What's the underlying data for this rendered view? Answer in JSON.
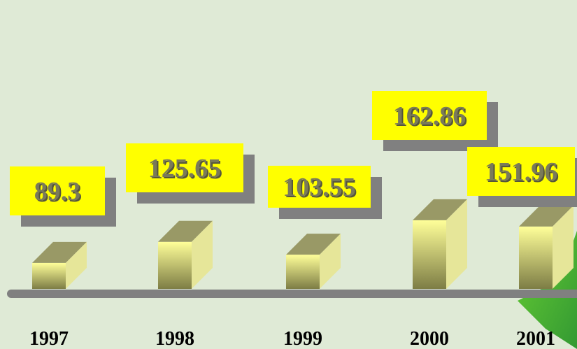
{
  "chart_data": {
    "type": "bar",
    "categories": [
      "1997",
      "1998",
      "1999",
      "2000",
      "2001"
    ],
    "values": [
      89.3,
      125.65,
      103.55,
      162.86,
      151.96
    ]
  }
}
